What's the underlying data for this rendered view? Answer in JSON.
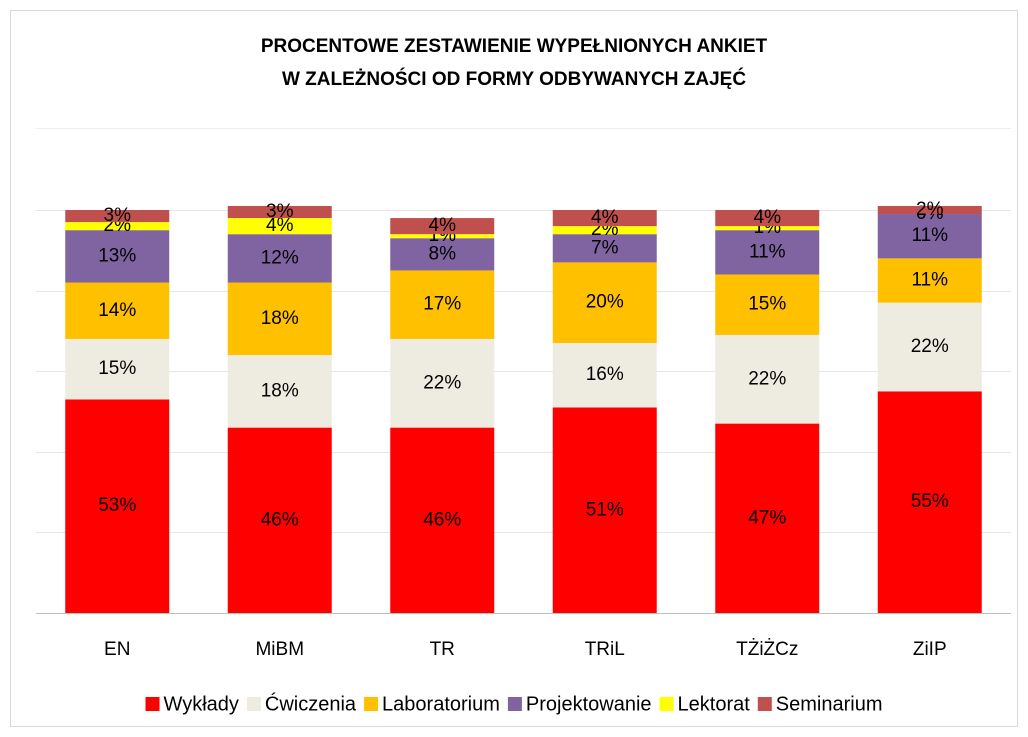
{
  "chart_data": {
    "type": "stacked_bar",
    "title": [
      "PROCENTOWE ZESTAWIENIE WYPEŁNIONYCH ANKIET",
      "W ZALEŻNOŚCI OD FORMY ODBYWANYCH ZAJĘĆ"
    ],
    "categories": [
      "EN",
      "MiBM",
      "TR",
      "TRiL",
      "TŻiŻCz",
      "ZiIP"
    ],
    "series": [
      {
        "name": "Wykłady",
        "color": "#ff0000",
        "values": [
          53,
          46,
          46,
          51,
          47,
          55
        ],
        "value_labels": [
          "53%",
          "46%",
          "46%",
          "51%",
          "47%",
          "55%"
        ]
      },
      {
        "name": "Ćwiczenia",
        "color": "#eeece1",
        "values": [
          15,
          18,
          22,
          16,
          22,
          22
        ],
        "value_labels": [
          "15%",
          "18%",
          "22%",
          "16%",
          "22%",
          "22%"
        ]
      },
      {
        "name": "Laboratorium",
        "color": "#ffc000",
        "values": [
          14,
          18,
          17,
          20,
          15,
          11
        ],
        "value_labels": [
          "14%",
          "18%",
          "17%",
          "20%",
          "15%",
          "11%"
        ]
      },
      {
        "name": "Projektowanie",
        "color": "#8064a2",
        "values": [
          13,
          12,
          8,
          7,
          11,
          11
        ],
        "value_labels": [
          "13%",
          "12%",
          "8%",
          "7%",
          "11%",
          "11%"
        ]
      },
      {
        "name": "Lektorat",
        "color": "#ffff00",
        "values": [
          2,
          4,
          1,
          2,
          1,
          0
        ],
        "value_labels": [
          "2%",
          "4%",
          "1%",
          "2%",
          "1%",
          "0%"
        ]
      },
      {
        "name": "Seminarium",
        "color": "#c0504d",
        "values": [
          3,
          3,
          4,
          4,
          4,
          2
        ],
        "value_labels": [
          "3%",
          "3%",
          "4%",
          "4%",
          "4%",
          "2%"
        ]
      }
    ],
    "ylim": [
      0,
      100
    ],
    "yticks": [
      0,
      20,
      40,
      60,
      80,
      100
    ],
    "grid": true,
    "legend": "bottom"
  }
}
